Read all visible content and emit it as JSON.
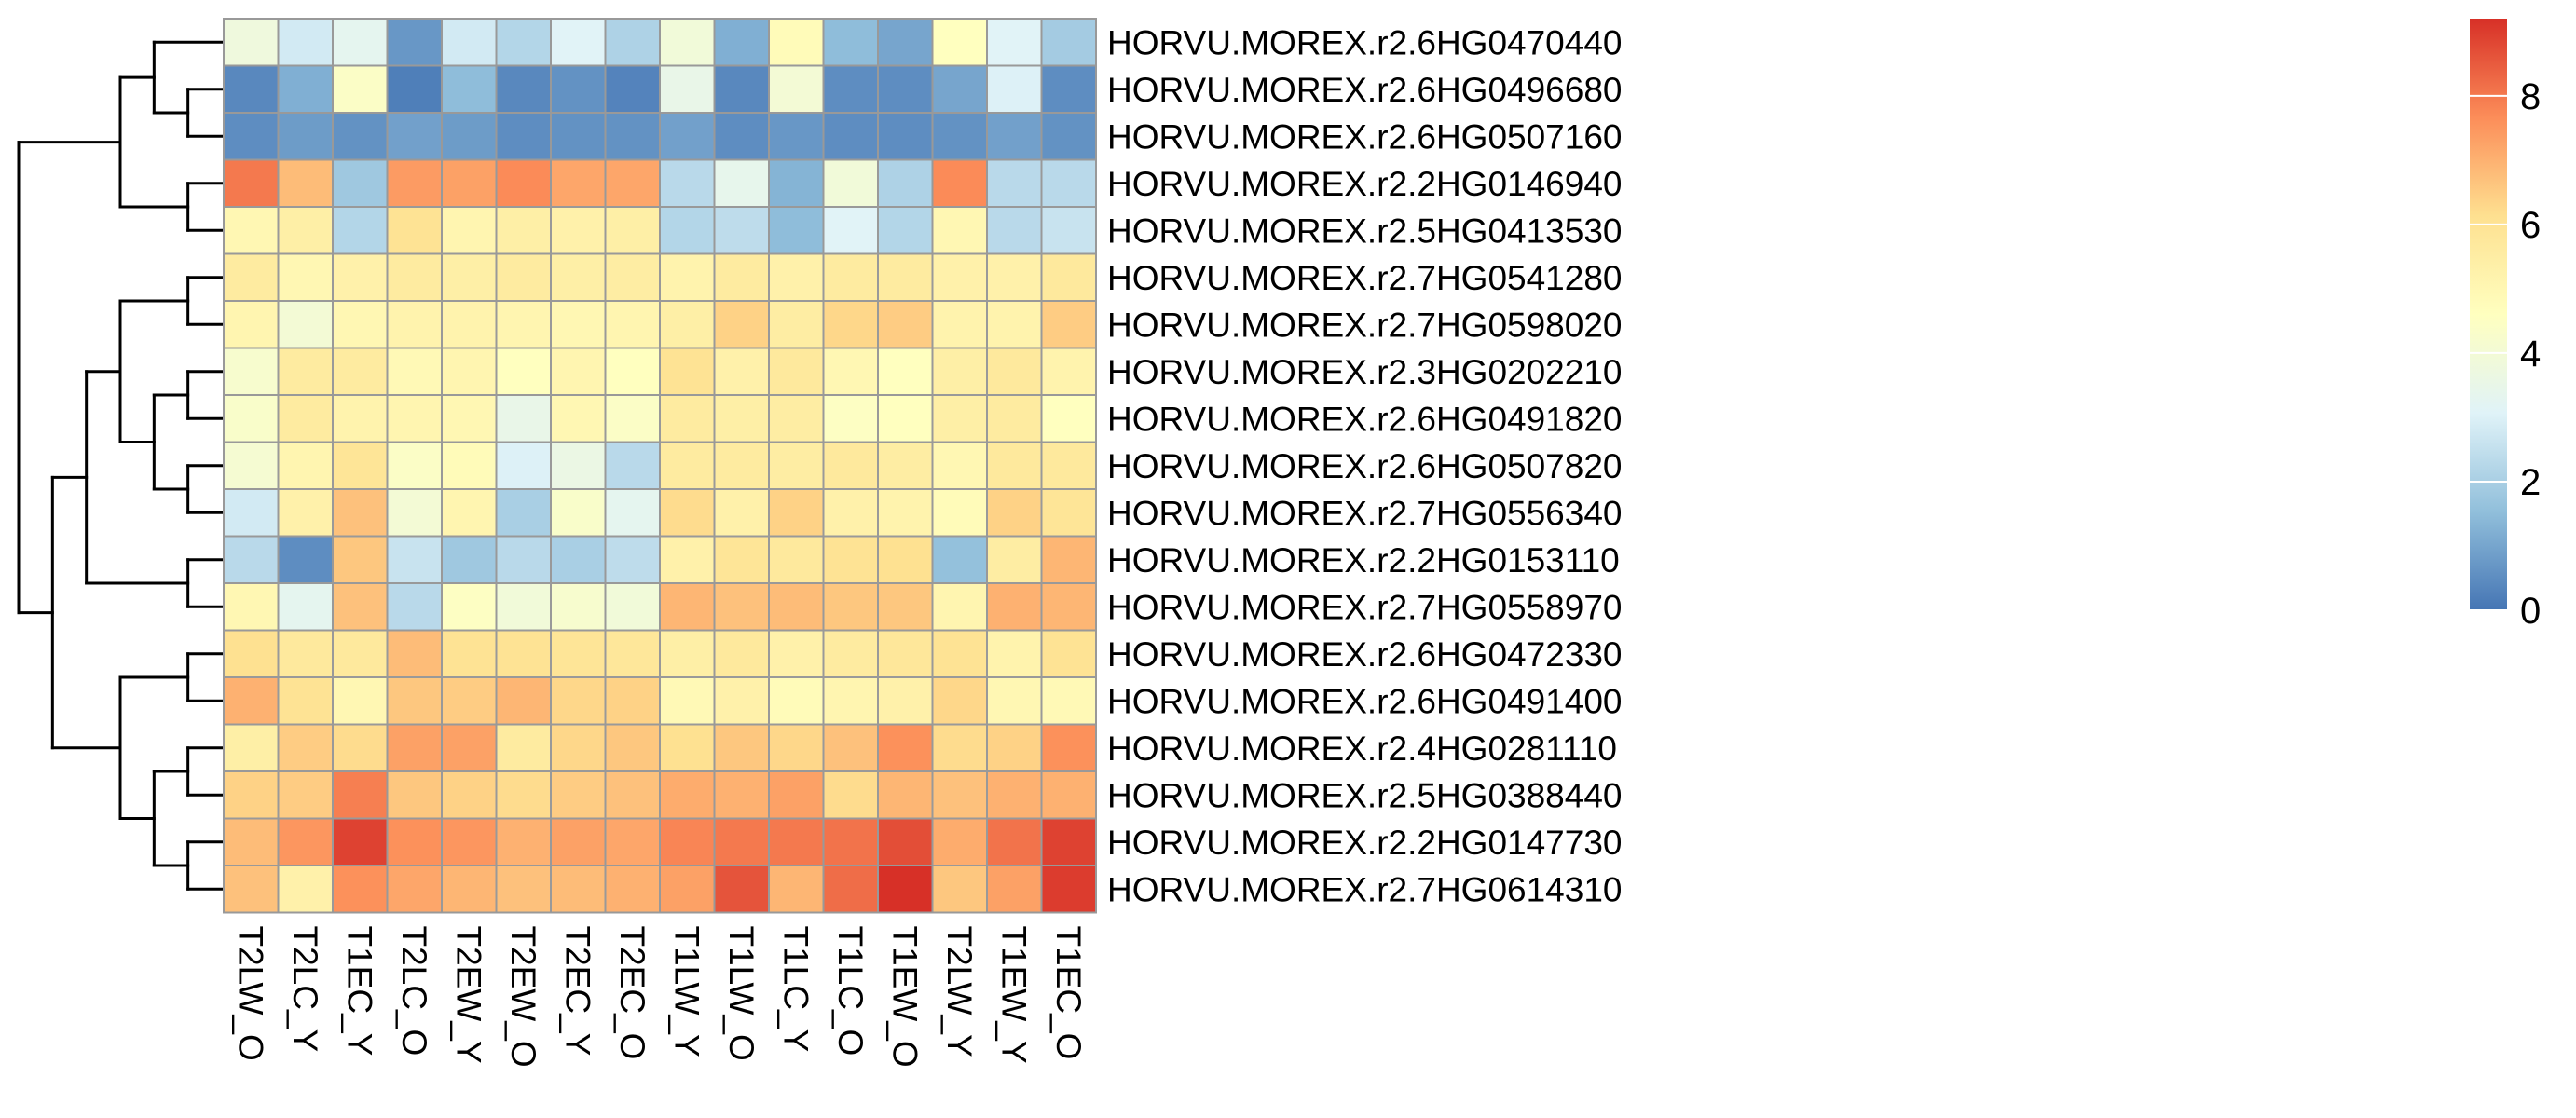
{
  "chart_data": {
    "type": "heatmap",
    "title": "",
    "xlabel": "",
    "ylabel": "",
    "columns": [
      "T2LW_O",
      "T2LC_Y",
      "T1EC_Y",
      "T2LC_O",
      "T2EW_Y",
      "T2EW_O",
      "T2EC_Y",
      "T2EC_O",
      "T1LW_Y",
      "T1LW_O",
      "T1LC_Y",
      "T1LC_O",
      "T1EW_O",
      "T2LW_Y",
      "T1EW_Y",
      "T1EC_O"
    ],
    "rows": [
      "HORVU.MOREX.r2.6HG0470440",
      "HORVU.MOREX.r2.6HG0496680",
      "HORVU.MOREX.r2.6HG0507160",
      "HORVU.MOREX.r2.2HG0146940",
      "HORVU.MOREX.r2.5HG0413530",
      "HORVU.MOREX.r2.7HG0541280",
      "HORVU.MOREX.r2.7HG0598020",
      "HORVU.MOREX.r2.3HG0202210",
      "HORVU.MOREX.r2.6HG0491820",
      "HORVU.MOREX.r2.6HG0507820",
      "HORVU.MOREX.r2.7HG0556340",
      "HORVU.MOREX.r2.2HG0153110",
      "HORVU.MOREX.r2.7HG0558970",
      "HORVU.MOREX.r2.6HG0472330",
      "HORVU.MOREX.r2.6HG0491400",
      "HORVU.MOREX.r2.4HG0281110",
      "HORVU.MOREX.r2.5HG0388440",
      "HORVU.MOREX.r2.2HG0147730",
      "HORVU.MOREX.r2.7HG0614310"
    ],
    "values": [
      [
        3.8,
        2.8,
        3.3,
        0.7,
        2.8,
        2.2,
        3.1,
        2.1,
        3.9,
        1.2,
        4.8,
        1.5,
        1.0,
        4.6,
        3.1,
        1.9
      ],
      [
        0.4,
        1.2,
        4.4,
        0.2,
        1.5,
        0.4,
        0.6,
        0.3,
        3.5,
        0.4,
        4.0,
        0.5,
        0.5,
        1.0,
        3.0,
        0.5
      ],
      [
        0.5,
        0.8,
        0.6,
        0.9,
        0.8,
        0.5,
        0.6,
        0.6,
        0.9,
        0.5,
        0.7,
        0.5,
        0.5,
        0.6,
        0.9,
        0.6
      ],
      [
        8.0,
        6.8,
        1.8,
        7.4,
        7.3,
        7.7,
        7.2,
        7.2,
        2.3,
        3.4,
        1.3,
        3.9,
        2.1,
        7.7,
        2.3,
        2.3
      ],
      [
        5.0,
        5.4,
        2.2,
        6.0,
        5.1,
        5.4,
        5.3,
        5.4,
        2.2,
        2.4,
        1.5,
        3.1,
        2.2,
        5.0,
        2.3,
        2.6
      ],
      [
        5.6,
        5.0,
        5.3,
        5.6,
        5.4,
        5.6,
        5.4,
        5.5,
        5.2,
        5.6,
        5.3,
        5.6,
        5.6,
        5.3,
        5.3,
        5.7
      ],
      [
        5.1,
        4.0,
        5.0,
        5.2,
        5.2,
        5.1,
        5.0,
        5.1,
        5.4,
        6.4,
        5.5,
        6.3,
        6.5,
        5.2,
        5.2,
        6.5
      ],
      [
        4.2,
        5.6,
        5.6,
        4.9,
        5.1,
        4.6,
        5.1,
        4.6,
        6.0,
        5.3,
        5.7,
        5.0,
        4.6,
        5.4,
        5.7,
        5.2
      ],
      [
        4.3,
        5.6,
        5.2,
        5.1,
        5.0,
        3.5,
        5.0,
        4.4,
        5.6,
        5.4,
        5.5,
        4.5,
        4.6,
        5.4,
        5.6,
        4.6
      ],
      [
        4.1,
        5.1,
        5.9,
        4.4,
        4.8,
        3.0,
        3.6,
        2.3,
        5.6,
        5.6,
        5.5,
        5.7,
        5.5,
        5.0,
        5.7,
        5.7
      ],
      [
        2.8,
        5.3,
        6.7,
        4.0,
        5.1,
        2.0,
        4.3,
        3.3,
        6.2,
        5.3,
        6.4,
        5.3,
        5.2,
        4.8,
        6.4,
        5.9
      ],
      [
        2.3,
        0.5,
        6.6,
        2.6,
        1.8,
        2.3,
        2.0,
        2.4,
        5.3,
        5.9,
        5.7,
        6.0,
        6.1,
        1.6,
        5.5,
        6.9
      ],
      [
        5.0,
        3.3,
        6.7,
        2.3,
        4.5,
        3.9,
        4.2,
        3.9,
        6.9,
        6.7,
        6.8,
        6.6,
        6.6,
        5.1,
        7.0,
        6.9
      ],
      [
        6.1,
        5.7,
        5.7,
        6.8,
        6.0,
        6.0,
        5.9,
        5.8,
        5.4,
        5.7,
        5.3,
        5.6,
        5.8,
        6.0,
        5.2,
        6.0
      ],
      [
        7.0,
        6.0,
        5.0,
        6.6,
        6.5,
        6.9,
        6.3,
        6.4,
        4.9,
        5.3,
        4.8,
        5.1,
        5.3,
        6.3,
        5.0,
        4.9
      ],
      [
        5.4,
        6.5,
        6.2,
        7.3,
        7.3,
        5.6,
        6.3,
        6.6,
        6.1,
        6.6,
        6.3,
        6.7,
        7.6,
        6.2,
        6.4,
        7.6
      ],
      [
        6.4,
        6.5,
        7.9,
        6.6,
        6.4,
        6.2,
        6.5,
        6.7,
        7.1,
        7.0,
        7.3,
        6.2,
        6.9,
        6.7,
        7.0,
        7.0
      ],
      [
        6.8,
        7.5,
        8.9,
        7.6,
        7.5,
        7.0,
        7.3,
        7.2,
        7.8,
        8.0,
        8.0,
        8.1,
        8.7,
        7.1,
        8.1,
        8.9
      ],
      [
        6.7,
        5.3,
        7.6,
        7.2,
        6.9,
        6.7,
        6.8,
        7.0,
        7.3,
        8.6,
        6.9,
        8.2,
        9.2,
        6.6,
        7.3,
        9.0
      ]
    ],
    "colorbar": {
      "min": 0,
      "max": 9.2,
      "ticks": [
        "0",
        "2",
        "4",
        "6",
        "8"
      ],
      "tick_values": [
        0,
        2,
        4,
        6,
        8
      ],
      "colors": [
        "#4575b4",
        "#91bfdb",
        "#e0f3f8",
        "#ffffbf",
        "#fee090",
        "#fc8d59",
        "#d73027"
      ],
      "placement": "right"
    },
    "row_dendrogram": {
      "placement": "left",
      "tree": [
        [
          [
            0,
            [
              1,
              2
            ]
          ],
          [
            3,
            4
          ]
        ],
        [
          [
            [
              [
                5,
                6
              ],
              [
                [
                  7,
                  8
                ],
                [
                  9,
                  10
                ]
              ]
            ],
            [
              11,
              12
            ]
          ],
          [
            [
              13,
              14
            ],
            [
              [
                15,
                16
              ],
              [
                17,
                18
              ]
            ]
          ]
        ]
      ]
    },
    "grid_color": "#999999"
  }
}
